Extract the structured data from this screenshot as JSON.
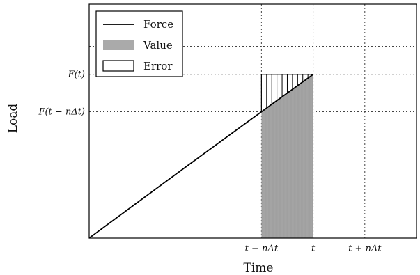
{
  "chart_data": {
    "type": "line",
    "xlabel": "Time",
    "ylabel": "Load",
    "x_ticks": [
      "t − nΔt",
      "t",
      "t + nΔt"
    ],
    "y_ticks": [
      "F(t − nΔt)",
      "F(t)"
    ],
    "x_tick_values": [
      0.5,
      0.65,
      0.8
    ],
    "y_tick_values": [
      0.54,
      0.7
    ],
    "xlim": [
      0,
      0.95
    ],
    "ylim": [
      0,
      1.0
    ],
    "extra_gridline_y": 0.82,
    "grid": "dotted at tick positions",
    "legend": {
      "placement": "top-left",
      "entries": [
        {
          "label": "Force",
          "style": "line",
          "color": "#000000"
        },
        {
          "label": "Value",
          "style": "filled",
          "color": "#aaaaaa"
        },
        {
          "label": "Error",
          "style": "box",
          "color": "#000000"
        }
      ]
    },
    "series": [
      {
        "name": "Force",
        "x": [
          0,
          0.05,
          0.1,
          0.15,
          0.2,
          0.25,
          0.3,
          0.35,
          0.4,
          0.45,
          0.5,
          0.55,
          0.6,
          0.65
        ],
        "y": [
          0,
          0.066,
          0.13,
          0.193,
          0.254,
          0.313,
          0.371,
          0.427,
          0.481,
          0.534,
          0.54,
          0.595,
          0.648,
          0.7
        ]
      }
    ],
    "value_region": {
      "x_start": 0.5,
      "x_end": 0.65
    },
    "error_region": {
      "x_start": 0.5,
      "x_end": 0.65,
      "y_top": 0.7
    },
    "colors": {
      "curve": "#000000",
      "value_fill": "#aaaaaa",
      "grid": "#444444"
    }
  }
}
